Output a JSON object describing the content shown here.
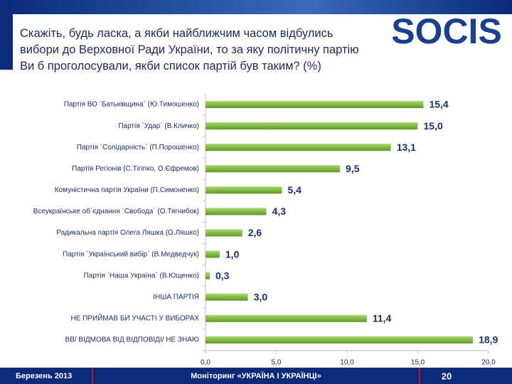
{
  "header": {
    "title": "Скажіть, будь ласка, а якби найближчим часом відбулись вибори до Верховної Ради України, то за яку політичну партію Ви б проголосували, якби список партій був таким? (%)",
    "logo": "SOCIS"
  },
  "chart_data": {
    "type": "bar",
    "orientation": "horizontal",
    "categories": [
      "Партія ВО `Батьківщина` (Ю.Тимошенко)",
      "Партія `Удар` (В.Кличко)",
      "Партія `Солідарність` (П.Порошенко)",
      "Партія Регіонів (С.Тігіпко, О.Єфремов)",
      "Комуністична партія України (П.Симоненко)",
      "Всеукраїнське об`єднання `Свобода` (О.Тягнибок)",
      "Радикальна партія Олега Ляшка (О.Ляшко)",
      "Партія `Український вибір` (В.Медведчук)",
      "Партія `Наша Україна` (В.Ющенко)",
      "ІНША ПАРТІЯ",
      "НЕ ПРИЙМАВ БИ УЧАСТІ У ВИБОРАХ",
      "ВВ/ ВІДМОВА ВІД ВІДПОВІДІ/ НЕ ЗНАЮ"
    ],
    "values": [
      15.4,
      15.0,
      13.1,
      9.5,
      5.4,
      4.3,
      2.6,
      1.0,
      0.3,
      3.0,
      11.4,
      18.9
    ],
    "value_labels": [
      "15,4",
      "15,0",
      "13,1",
      "9,5",
      "5,4",
      "4,3",
      "2,6",
      "1,0",
      "0,3",
      "3,0",
      "11,4",
      "18,9"
    ],
    "color": "#7ab83a",
    "xlim": [
      0,
      20
    ],
    "xticks": [
      {
        "value": 0,
        "label": "0,0"
      },
      {
        "value": 5,
        "label": "5,0"
      },
      {
        "value": 10,
        "label": "10,0"
      },
      {
        "value": 15,
        "label": "15,0"
      },
      {
        "value": 20,
        "label": "20,0"
      }
    ]
  },
  "footer": {
    "date": "Березень 2013",
    "project": "Моніторинг «УКРАЇНА І УКРАЇНЦІ»",
    "page": "20"
  }
}
